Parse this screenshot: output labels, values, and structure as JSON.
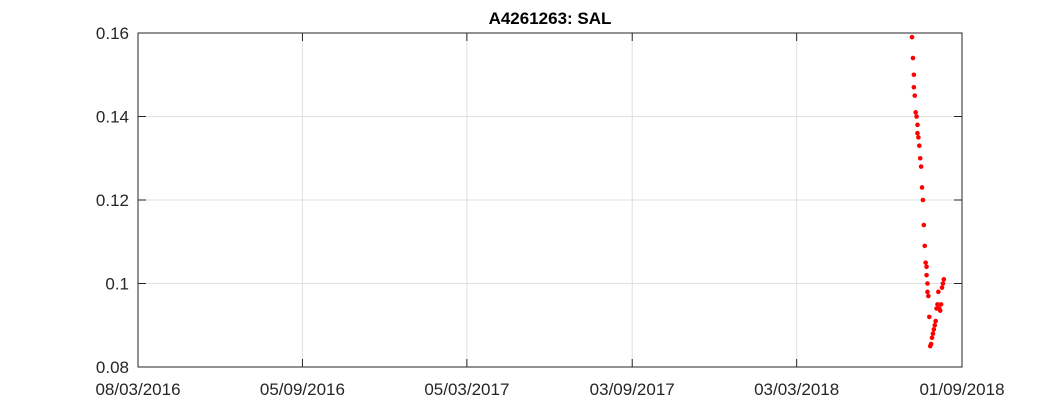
{
  "chart_data": {
    "type": "scatter",
    "title": "A4261263: SAL",
    "xlabel": "",
    "ylabel": "",
    "x_ticks": [
      "08/03/2016",
      "05/09/2016",
      "05/03/2017",
      "03/09/2017",
      "03/03/2018",
      "01/09/2018"
    ],
    "x_tick_dates": [
      "2016-03-08",
      "2016-09-05",
      "2017-03-05",
      "2017-09-03",
      "2018-03-03",
      "2018-09-01"
    ],
    "xlim": [
      "2016-03-08",
      "2018-09-01"
    ],
    "y_ticks": [
      "0.08",
      "0.1",
      "0.12",
      "0.14",
      "0.16"
    ],
    "y_tick_values": [
      0.08,
      0.1,
      0.12,
      0.14,
      0.16
    ],
    "ylim": [
      0.08,
      0.16
    ],
    "grid": true,
    "marker_color": "#ff0000",
    "series": [
      {
        "points": [
          {
            "x": "2018-07-08",
            "y": 0.159
          },
          {
            "x": "2018-07-09",
            "y": 0.154
          },
          {
            "x": "2018-07-10",
            "y": 0.15
          },
          {
            "x": "2018-07-10",
            "y": 0.147
          },
          {
            "x": "2018-07-11",
            "y": 0.145
          },
          {
            "x": "2018-07-12",
            "y": 0.141
          },
          {
            "x": "2018-07-13",
            "y": 0.14
          },
          {
            "x": "2018-07-14",
            "y": 0.138
          },
          {
            "x": "2018-07-14",
            "y": 0.136
          },
          {
            "x": "2018-07-15",
            "y": 0.135
          },
          {
            "x": "2018-07-16",
            "y": 0.133
          },
          {
            "x": "2018-07-17",
            "y": 0.13
          },
          {
            "x": "2018-07-18",
            "y": 0.128
          },
          {
            "x": "2018-07-19",
            "y": 0.123
          },
          {
            "x": "2018-07-20",
            "y": 0.12
          },
          {
            "x": "2018-07-21",
            "y": 0.114
          },
          {
            "x": "2018-07-22",
            "y": 0.109
          },
          {
            "x": "2018-07-23",
            "y": 0.105
          },
          {
            "x": "2018-07-24",
            "y": 0.104
          },
          {
            "x": "2018-07-24",
            "y": 0.102
          },
          {
            "x": "2018-07-25",
            "y": 0.1
          },
          {
            "x": "2018-07-25",
            "y": 0.098
          },
          {
            "x": "2018-07-26",
            "y": 0.097
          },
          {
            "x": "2018-07-27",
            "y": 0.092
          },
          {
            "x": "2018-07-28",
            "y": 0.085
          },
          {
            "x": "2018-07-29",
            "y": 0.0855
          },
          {
            "x": "2018-07-30",
            "y": 0.087
          },
          {
            "x": "2018-07-31",
            "y": 0.088
          },
          {
            "x": "2018-08-01",
            "y": 0.089
          },
          {
            "x": "2018-08-02",
            "y": 0.09
          },
          {
            "x": "2018-08-03",
            "y": 0.091
          },
          {
            "x": "2018-08-04",
            "y": 0.094
          },
          {
            "x": "2018-08-05",
            "y": 0.095
          },
          {
            "x": "2018-08-06",
            "y": 0.098
          },
          {
            "x": "2018-08-07",
            "y": 0.094
          },
          {
            "x": "2018-08-08",
            "y": 0.0935
          },
          {
            "x": "2018-08-09",
            "y": 0.095
          },
          {
            "x": "2018-08-10",
            "y": 0.099
          },
          {
            "x": "2018-08-11",
            "y": 0.1
          },
          {
            "x": "2018-08-12",
            "y": 0.101
          }
        ]
      }
    ]
  }
}
